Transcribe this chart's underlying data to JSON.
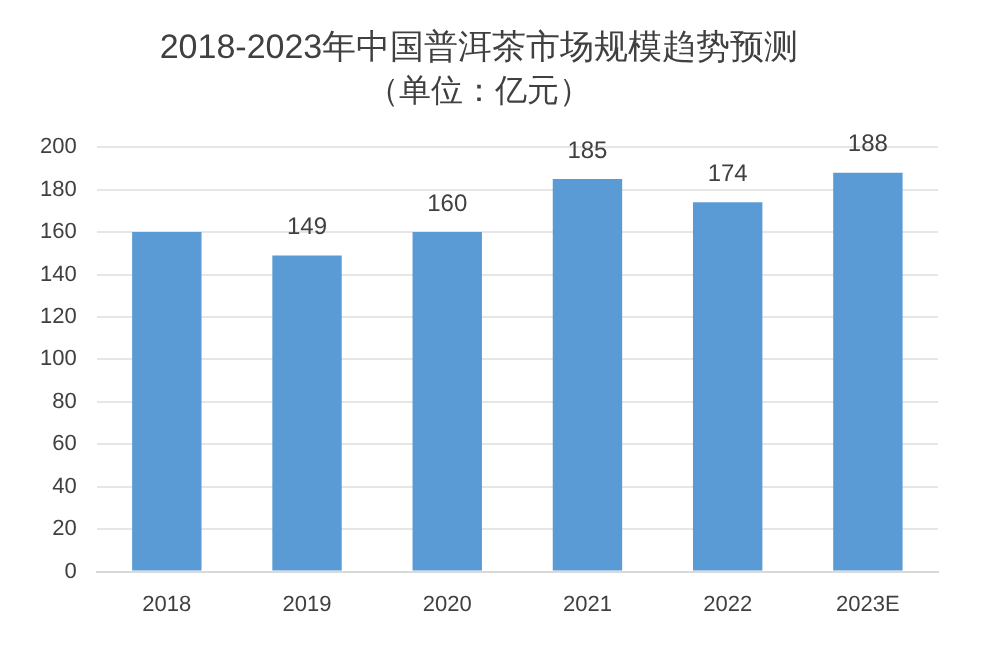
{
  "chart_data": {
    "type": "bar",
    "title": "2018-2023年中国普洱茶市场规模趋势预测",
    "subtitle": "（单位：亿元）",
    "categories": [
      "2018",
      "2019",
      "2020",
      "2021",
      "2022",
      "2023E"
    ],
    "values": [
      160,
      149,
      160,
      185,
      174,
      188
    ],
    "value_labels": [
      null,
      "149",
      "160",
      "185",
      "174",
      "188"
    ],
    "color": "#5b9bd5",
    "ylim": [
      0,
      200
    ],
    "yticks": [
      0,
      20,
      40,
      60,
      80,
      100,
      120,
      140,
      160,
      180,
      200
    ],
    "grid": "y",
    "legend": false
  }
}
